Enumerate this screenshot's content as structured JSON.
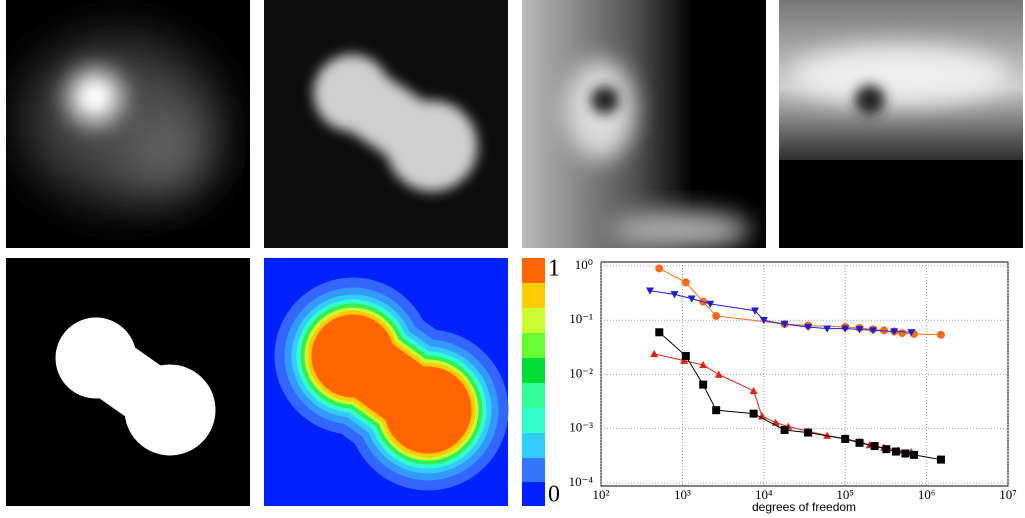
{
  "colorbar": {
    "top_label": "1",
    "bottom_label": "0"
  },
  "chart_data": {
    "type": "line",
    "xlabel": "degrees of freedom",
    "xscale": "log",
    "yscale": "log",
    "grid": true,
    "xlim": [
      100,
      10000000
    ],
    "ylim": [
      0.0001,
      1
    ],
    "xticks": [
      {
        "value": 100,
        "label": "10²"
      },
      {
        "value": 1000,
        "label": "10³"
      },
      {
        "value": 10000,
        "label": "10⁴"
      },
      {
        "value": 100000,
        "label": "10⁵"
      },
      {
        "value": 1000000,
        "label": "10⁶"
      },
      {
        "value": 10000000,
        "label": "10⁷"
      }
    ],
    "yticks": [
      {
        "value": 0.0001,
        "label": "10⁻⁴"
      },
      {
        "value": 0.001,
        "label": "10⁻³"
      },
      {
        "value": 0.01,
        "label": "10⁻²"
      },
      {
        "value": 0.1,
        "label": "10⁻¹"
      },
      {
        "value": 1,
        "label": "10⁰"
      }
    ],
    "series": [
      {
        "color": "#ff6a1a",
        "marker": "circle",
        "x": [
          520,
          1100,
          1800,
          2600,
          18000,
          35000,
          100000,
          150000,
          220000,
          300000,
          400000,
          500000,
          700000,
          1500000
        ],
        "values": [
          0.9,
          0.5,
          0.22,
          0.12,
          0.085,
          0.08,
          0.075,
          0.072,
          0.068,
          0.065,
          0.062,
          0.058,
          0.056,
          0.054
        ]
      },
      {
        "color": "#1f1fcf",
        "marker": "triangle-down",
        "x": [
          400,
          800,
          1300,
          2200,
          7800,
          10000,
          18000,
          35000,
          60000,
          100000,
          150000,
          220000,
          400000,
          650000
        ],
        "values": [
          0.35,
          0.3,
          0.25,
          0.2,
          0.15,
          0.1,
          0.085,
          0.075,
          0.07,
          0.07,
          0.068,
          0.065,
          0.062,
          0.06
        ]
      },
      {
        "color": "#e0201a",
        "marker": "triangle-up",
        "x": [
          450,
          1050,
          1800,
          2800,
          7500,
          9500,
          14000,
          20000,
          35000,
          60000,
          100000,
          150000,
          200000,
          300000,
          450000,
          650000
        ],
        "values": [
          0.024,
          0.018,
          0.015,
          0.01,
          0.005,
          0.0017,
          0.0013,
          0.0011,
          0.0009,
          0.00075,
          0.00065,
          0.00058,
          0.0005,
          0.00045,
          0.0004,
          0.00037
        ]
      },
      {
        "color": "#000000",
        "marker": "square",
        "x": [
          520,
          1100,
          1800,
          2600,
          7500,
          18000,
          35000,
          100000,
          150000,
          230000,
          320000,
          420000,
          550000,
          700000,
          1500000
        ],
        "values": [
          0.06,
          0.022,
          0.0065,
          0.0022,
          0.0019,
          0.00095,
          0.00085,
          0.00065,
          0.00055,
          0.00048,
          0.00042,
          0.00038,
          0.00035,
          0.00033,
          0.00027
        ]
      }
    ]
  }
}
